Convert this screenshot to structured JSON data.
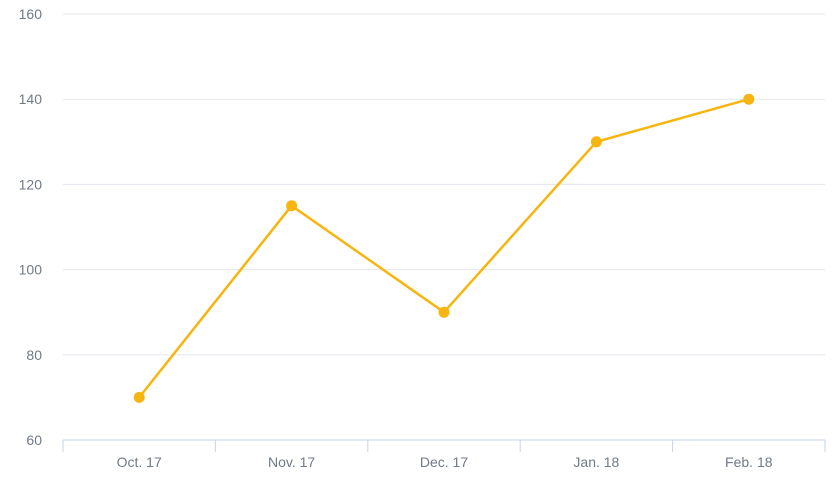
{
  "chart_data": {
    "type": "line",
    "categories": [
      "Oct. 17",
      "Nov. 17",
      "Dec. 17",
      "Jan. 18",
      "Feb. 18"
    ],
    "series": [
      {
        "values": [
          70,
          115,
          90,
          130,
          140
        ]
      }
    ],
    "ylim": [
      60,
      160
    ],
    "yticks": [
      60,
      80,
      100,
      120,
      140,
      160
    ],
    "grid": true,
    "colors": {
      "series": "#f7b50f",
      "grid": "#e3e7ee",
      "axis": "#c7d3e6",
      "tick_text": "#707a86"
    }
  }
}
